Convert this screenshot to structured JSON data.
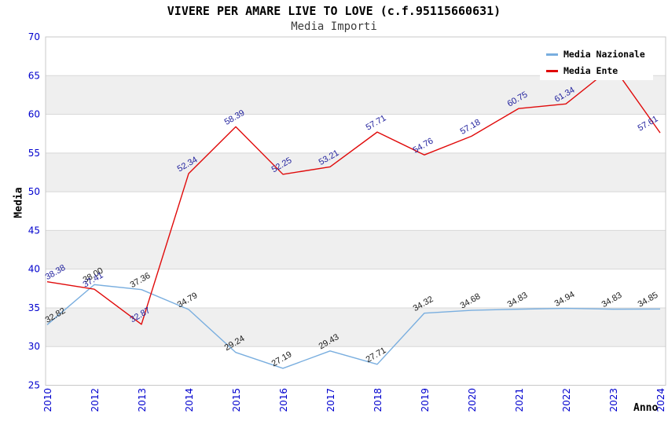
{
  "chart_data": {
    "type": "line",
    "title": "VIVERE PER AMARE LIVE TO LOVE (c.f.95115660631)",
    "subtitle": "Media Importi",
    "xlabel": "Anno",
    "ylabel": "Media",
    "categories": [
      "2010",
      "2012",
      "2013",
      "2014",
      "2015",
      "2016",
      "2017",
      "2018",
      "2019",
      "2020",
      "2021",
      "2022",
      "2023",
      "2024"
    ],
    "series": [
      {
        "name": "Media Nazionale",
        "color": "#79AEDF",
        "label_color": "#1A1A1A",
        "values": [
          32.82,
          38.0,
          37.36,
          34.79,
          29.24,
          27.19,
          29.43,
          27.71,
          34.32,
          34.68,
          34.83,
          34.94,
          34.83,
          34.85
        ],
        "labels": [
          "32.82",
          "38.00",
          "37.36",
          "34.79",
          "29.24",
          "27.19",
          "29.43",
          "27.71",
          "34.32",
          "34.68",
          "34.83",
          "34.94",
          "34.83",
          "34.85"
        ]
      },
      {
        "name": "Media Ente",
        "color": "#E00A0A",
        "label_color": "#22229E",
        "values": [
          38.38,
          37.41,
          32.87,
          52.34,
          58.39,
          52.25,
          53.21,
          57.71,
          54.76,
          57.18,
          60.75,
          61.34,
          66.2,
          57.61
        ],
        "labels": [
          "38.38",
          "37.41",
          "32.87",
          "52.34",
          "58.39",
          "52.25",
          "53.21",
          "57.71",
          "54.76",
          "57.18",
          "60.75",
          "61.34",
          "",
          "57.61"
        ]
      }
    ],
    "ylim": [
      25,
      70
    ],
    "yticks": [
      25,
      30,
      35,
      40,
      45,
      50,
      55,
      60,
      65,
      70
    ],
    "ytick_step": 5,
    "grid": true,
    "legend_position": "top-right",
    "axis_color": "#0000CE",
    "band_color": "#EFEFEF",
    "grid_color": "#D8D8D8",
    "border_color": "#C8C8C8"
  }
}
